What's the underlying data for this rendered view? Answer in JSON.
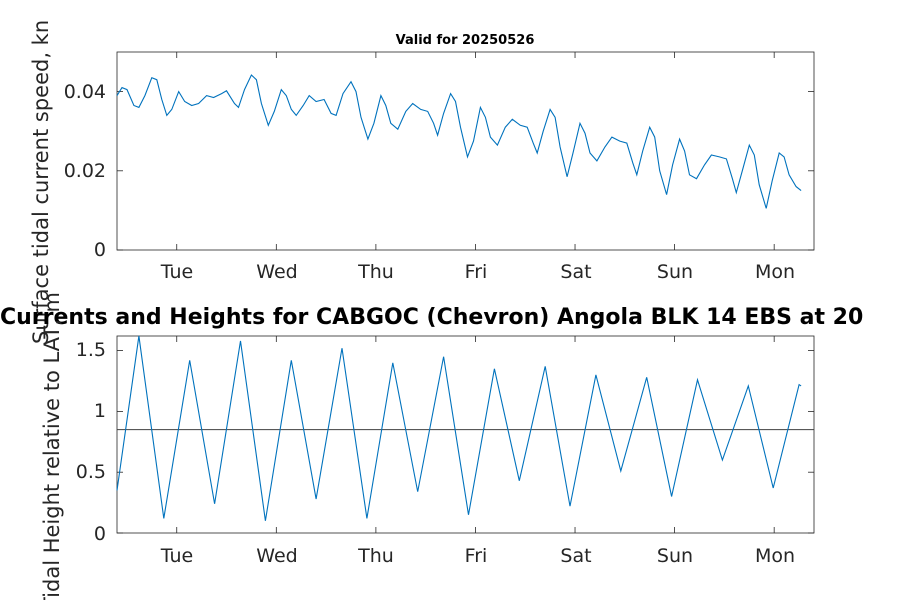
{
  "chart_data": [
    {
      "type": "line",
      "title": "Valid for 20250526",
      "ylabel": "Surface tidal current speed, kn",
      "xlabel": "",
      "xticks": [
        "Tue",
        "Wed",
        "Thu",
        "Fri",
        "Sat",
        "Sun",
        "Mon"
      ],
      "yticks": [
        "0",
        "0.02",
        "0.04"
      ],
      "xlim": [
        0,
        7
      ],
      "ylim": [
        0,
        0.05
      ],
      "color": "#0072BD",
      "series": [
        {
          "values": [
            [
              0.0,
              0.039
            ],
            [
              0.05,
              0.041
            ],
            [
              0.1,
              0.0405
            ],
            [
              0.17,
              0.0365
            ],
            [
              0.22,
              0.036
            ],
            [
              0.28,
              0.039
            ],
            [
              0.35,
              0.0435
            ],
            [
              0.4,
              0.043
            ],
            [
              0.45,
              0.038
            ],
            [
              0.5,
              0.034
            ],
            [
              0.55,
              0.0355
            ],
            [
              0.62,
              0.04
            ],
            [
              0.68,
              0.0375
            ],
            [
              0.75,
              0.0365
            ],
            [
              0.82,
              0.037
            ],
            [
              0.9,
              0.039
            ],
            [
              0.97,
              0.0385
            ],
            [
              1.05,
              0.0395
            ],
            [
              1.1,
              0.0402
            ],
            [
              1.18,
              0.037
            ],
            [
              1.22,
              0.036
            ],
            [
              1.28,
              0.0405
            ],
            [
              1.35,
              0.0442
            ],
            [
              1.4,
              0.043
            ],
            [
              1.45,
              0.037
            ],
            [
              1.52,
              0.0315
            ],
            [
              1.58,
              0.035
            ],
            [
              1.65,
              0.0405
            ],
            [
              1.7,
              0.039
            ],
            [
              1.75,
              0.0355
            ],
            [
              1.8,
              0.034
            ],
            [
              1.87,
              0.0365
            ],
            [
              1.93,
              0.039
            ],
            [
              2.0,
              0.0375
            ],
            [
              2.08,
              0.038
            ],
            [
              2.15,
              0.0345
            ],
            [
              2.2,
              0.034
            ],
            [
              2.27,
              0.0395
            ],
            [
              2.35,
              0.0425
            ],
            [
              2.4,
              0.04
            ],
            [
              2.45,
              0.0335
            ],
            [
              2.52,
              0.028
            ],
            [
              2.58,
              0.032
            ],
            [
              2.65,
              0.039
            ],
            [
              2.7,
              0.0365
            ],
            [
              2.75,
              0.032
            ],
            [
              2.82,
              0.0305
            ],
            [
              2.9,
              0.035
            ],
            [
              2.97,
              0.037
            ],
            [
              3.05,
              0.0355
            ],
            [
              3.12,
              0.035
            ],
            [
              3.18,
              0.032
            ],
            [
              3.22,
              0.029
            ],
            [
              3.28,
              0.0345
            ],
            [
              3.35,
              0.0395
            ],
            [
              3.4,
              0.0375
            ],
            [
              3.45,
              0.031
            ],
            [
              3.52,
              0.0235
            ],
            [
              3.58,
              0.0275
            ],
            [
              3.65,
              0.036
            ],
            [
              3.7,
              0.0335
            ],
            [
              3.75,
              0.0285
            ],
            [
              3.82,
              0.0265
            ],
            [
              3.9,
              0.031
            ],
            [
              3.97,
              0.033
            ],
            [
              4.05,
              0.0315
            ],
            [
              4.12,
              0.031
            ],
            [
              4.18,
              0.027
            ],
            [
              4.22,
              0.0245
            ],
            [
              4.28,
              0.03
            ],
            [
              4.35,
              0.0355
            ],
            [
              4.4,
              0.0335
            ],
            [
              4.45,
              0.026
            ],
            [
              4.52,
              0.0185
            ],
            [
              4.58,
              0.0245
            ],
            [
              4.65,
              0.032
            ],
            [
              4.7,
              0.0295
            ],
            [
              4.75,
              0.0245
            ],
            [
              4.82,
              0.0225
            ],
            [
              4.9,
              0.026
            ],
            [
              4.97,
              0.0285
            ],
            [
              5.05,
              0.0275
            ],
            [
              5.12,
              0.027
            ],
            [
              5.18,
              0.022
            ],
            [
              5.22,
              0.019
            ],
            [
              5.28,
              0.025
            ],
            [
              5.35,
              0.031
            ],
            [
              5.4,
              0.0285
            ],
            [
              5.45,
              0.02
            ],
            [
              5.52,
              0.014
            ],
            [
              5.58,
              0.0215
            ],
            [
              5.65,
              0.028
            ],
            [
              5.7,
              0.025
            ],
            [
              5.75,
              0.019
            ],
            [
              5.82,
              0.018
            ],
            [
              5.9,
              0.0215
            ],
            [
              5.97,
              0.024
            ],
            [
              6.05,
              0.0235
            ],
            [
              6.12,
              0.023
            ],
            [
              6.18,
              0.018
            ],
            [
              6.22,
              0.0145
            ],
            [
              6.28,
              0.02
            ],
            [
              6.35,
              0.0265
            ],
            [
              6.4,
              0.024
            ],
            [
              6.45,
              0.0165
            ],
            [
              6.52,
              0.0105
            ],
            [
              6.58,
              0.0175
            ],
            [
              6.65,
              0.0245
            ],
            [
              6.7,
              0.0235
            ],
            [
              6.75,
              0.019
            ],
            [
              6.82,
              0.016
            ],
            [
              6.87,
              0.015
            ]
          ]
        }
      ]
    },
    {
      "type": "line",
      "title": "Currents and Heights for CABGOC (Chevron)  Angola BLK 14  EBS at 20",
      "ylabel": "Tidal Height relative to LAT, m",
      "xlabel": "",
      "xticks": [
        "Tue",
        "Wed",
        "Thu",
        "Fri",
        "Sat",
        "Sun",
        "Mon"
      ],
      "yticks": [
        "0",
        "0.5",
        "1",
        "1.5"
      ],
      "xlim": [
        0,
        7
      ],
      "ylim": [
        0,
        1.62
      ],
      "reference_line": 0.85,
      "color": "#0072BD",
      "series": [
        {
          "values": [
            [
              0.0,
              0.35
            ],
            [
              0.22,
              1.62
            ],
            [
              0.47,
              0.12
            ],
            [
              0.73,
              1.42
            ],
            [
              0.98,
              0.24
            ],
            [
              1.24,
              1.58
            ],
            [
              1.49,
              0.1
            ],
            [
              1.75,
              1.42
            ],
            [
              2.0,
              0.28
            ],
            [
              2.26,
              1.52
            ],
            [
              2.51,
              0.12
            ],
            [
              2.77,
              1.4
            ],
            [
              3.02,
              0.34
            ],
            [
              3.28,
              1.45
            ],
            [
              3.53,
              0.15
            ],
            [
              3.79,
              1.35
            ],
            [
              4.04,
              0.43
            ],
            [
              4.3,
              1.37
            ],
            [
              4.55,
              0.22
            ],
            [
              4.81,
              1.3
            ],
            [
              5.06,
              0.51
            ],
            [
              5.32,
              1.28
            ],
            [
              5.57,
              0.3
            ],
            [
              5.83,
              1.26
            ],
            [
              6.08,
              0.6
            ],
            [
              6.34,
              1.21
            ],
            [
              6.59,
              0.37
            ],
            [
              6.85,
              1.22
            ],
            [
              6.87,
              1.21
            ]
          ]
        }
      ]
    }
  ]
}
